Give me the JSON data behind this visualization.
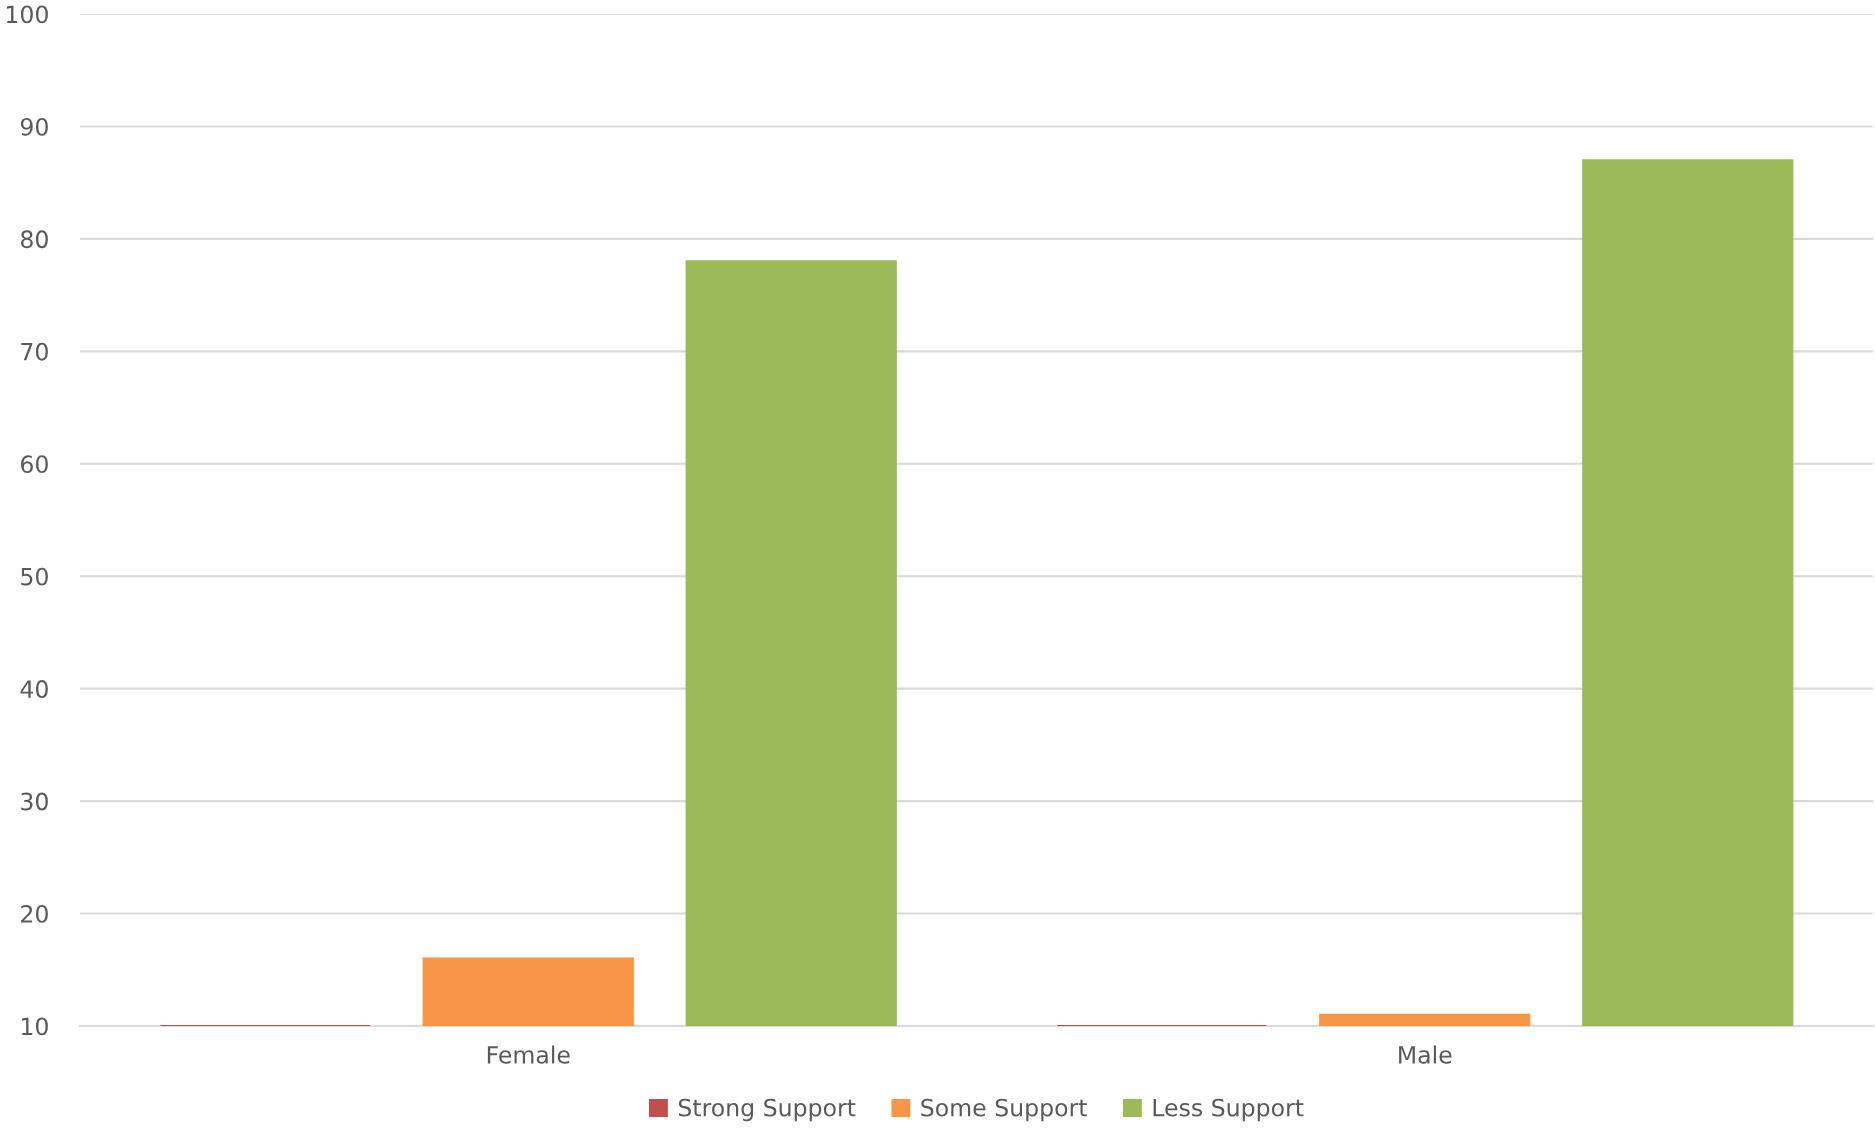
{
  "chart_data": {
    "type": "bar",
    "categories": [
      "Female",
      "Male"
    ],
    "series": [
      {
        "name": "Strong Support",
        "color": "#c0504d",
        "values": [
          10,
          10
        ]
      },
      {
        "name": "Some Support",
        "color": "#f79646",
        "values": [
          16,
          11
        ]
      },
      {
        "name": "Less Support",
        "color": "#9bbb59",
        "values": [
          78,
          87
        ]
      }
    ],
    "ylim": [
      10,
      100
    ],
    "yticks": [
      10,
      20,
      30,
      40,
      50,
      60,
      70,
      80,
      90,
      100
    ],
    "grid": "y",
    "legend": "bottom"
  }
}
